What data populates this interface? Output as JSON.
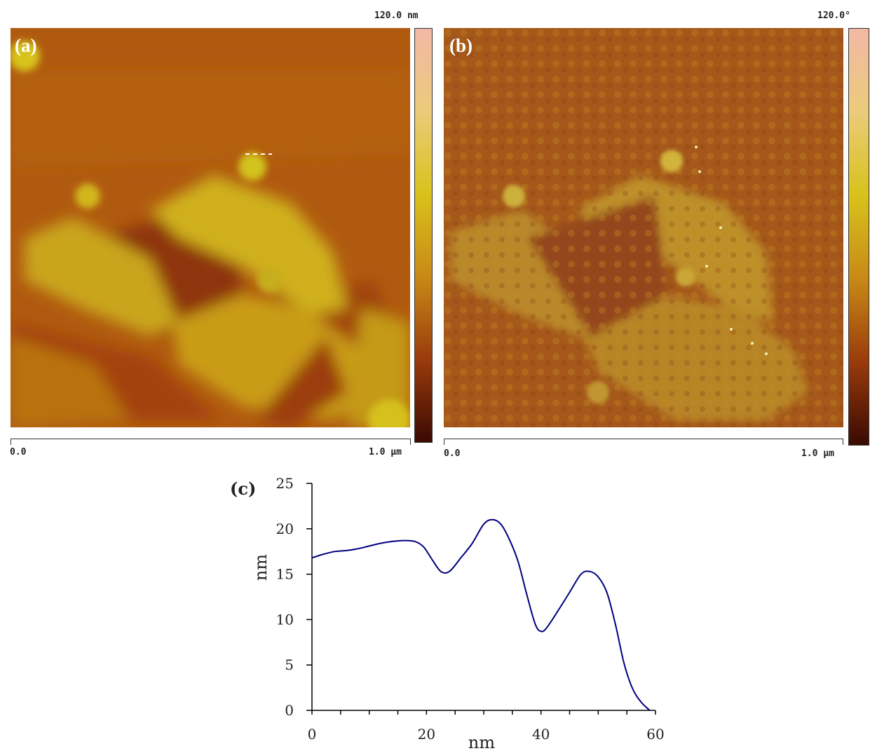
{
  "panels": {
    "a": {
      "tag": "(a)",
      "colorbar_max": "120.0 nm",
      "scale_start": "0.0",
      "scale_end": "1.0 µm"
    },
    "b": {
      "tag": "(b)",
      "colorbar_max": "120.0°",
      "scale_start": "0.0",
      "scale_end": "1.0 µm"
    }
  },
  "colors": {
    "afm_dark": "#3a0a02",
    "afm_mid": "#b3560d",
    "afm_light": "#d8c21b",
    "afm_top": "#f2b8a6",
    "profile_line": "#000080"
  },
  "chart_data": {
    "type": "line",
    "panel_tag": "(c)",
    "title": "",
    "xlabel": "nm",
    "ylabel": "nm",
    "xlim": [
      0,
      60
    ],
    "ylim": [
      0,
      25
    ],
    "x_ticks": [
      0,
      20,
      40,
      60
    ],
    "y_ticks": [
      0,
      5,
      10,
      15,
      20,
      25
    ],
    "grid": false,
    "series": [
      {
        "x": [
          0,
          2,
          4,
          6,
          8,
          10,
          12,
          14,
          16,
          18,
          19.5,
          21,
          22.5,
          24,
          26,
          28,
          30,
          31.5,
          33,
          34.5,
          36,
          37.5,
          39,
          40,
          41,
          43,
          45,
          47,
          48.5,
          50,
          51.5,
          53,
          54.5,
          56,
          57.5,
          59
        ],
        "y": [
          16.8,
          17.2,
          17.5,
          17.6,
          17.8,
          18.1,
          18.4,
          18.6,
          18.7,
          18.6,
          18.0,
          16.6,
          15.3,
          15.3,
          16.8,
          18.4,
          20.5,
          21.0,
          20.5,
          18.8,
          16.4,
          12.8,
          9.5,
          8.7,
          9.1,
          11.0,
          13.0,
          15.0,
          15.3,
          14.7,
          13.0,
          9.5,
          5.2,
          2.4,
          0.9,
          0.0
        ]
      }
    ]
  }
}
